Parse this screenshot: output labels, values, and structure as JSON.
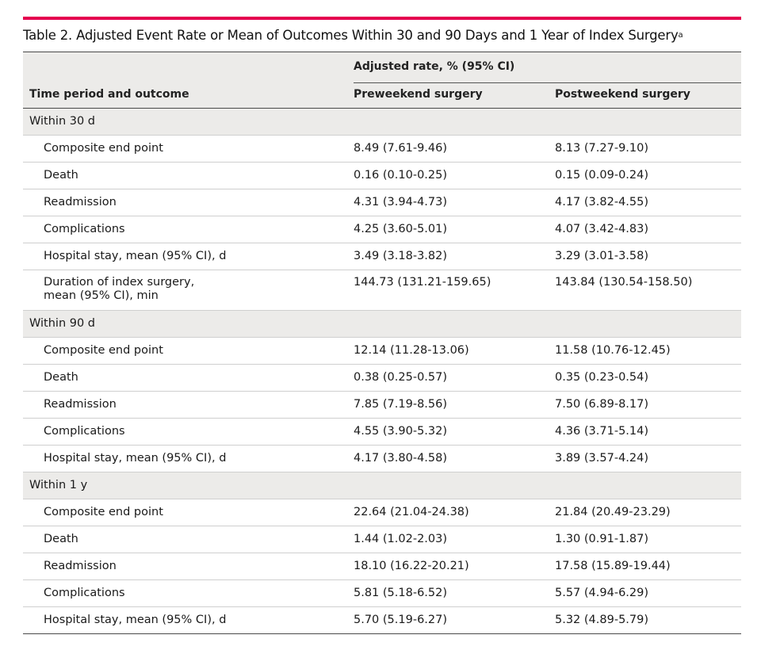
{
  "table": {
    "caption": "Table 2. Adjusted Event Rate or Mean of Outcomes Within 30 and 90 Days and 1 Year of Index Surgery",
    "caption_footnote_marker": "a",
    "accent_color": "#e5004f",
    "header_background": "#ecebe9",
    "group_header": "Adjusted rate, % (95% CI)",
    "columns": [
      "Time period and outcome",
      "Preweekend surgery",
      "Postweekend surgery"
    ],
    "sections": [
      {
        "label": "Within 30 d",
        "rows": [
          {
            "outcome": "Composite end point",
            "pre": "8.49 (7.61-9.46)",
            "post": "8.13 (7.27-9.10)"
          },
          {
            "outcome": "Death",
            "pre": "0.16 (0.10-0.25)",
            "post": "0.15 (0.09-0.24)"
          },
          {
            "outcome": "Readmission",
            "pre": "4.31 (3.94-4.73)",
            "post": "4.17 (3.82-4.55)"
          },
          {
            "outcome": "Complications",
            "pre": "4.25 (3.60-5.01)",
            "post": "4.07 (3.42-4.83)"
          },
          {
            "outcome": "Hospital stay, mean (95% CI), d",
            "pre": "3.49 (3.18-3.82)",
            "post": "3.29 (3.01-3.58)"
          },
          {
            "outcome_line1": "Duration of index surgery,",
            "outcome_line2": "mean (95% CI), min",
            "pre": "144.73 (131.21-159.65)",
            "post": "143.84 (130.54-158.50)"
          }
        ]
      },
      {
        "label": "Within 90 d",
        "rows": [
          {
            "outcome": "Composite end point",
            "pre": "12.14 (11.28-13.06)",
            "post": "11.58 (10.76-12.45)"
          },
          {
            "outcome": "Death",
            "pre": "0.38 (0.25-0.57)",
            "post": "0.35 (0.23-0.54)"
          },
          {
            "outcome": "Readmission",
            "pre": "7.85 (7.19-8.56)",
            "post": "7.50 (6.89-8.17)"
          },
          {
            "outcome": "Complications",
            "pre": "4.55 (3.90-5.32)",
            "post": "4.36 (3.71-5.14)"
          },
          {
            "outcome": "Hospital stay, mean (95% CI), d",
            "pre": "4.17 (3.80-4.58)",
            "post": "3.89 (3.57-4.24)"
          }
        ]
      },
      {
        "label": "Within 1 y",
        "rows": [
          {
            "outcome": "Composite end point",
            "pre": "22.64 (21.04-24.38)",
            "post": "21.84 (20.49-23.29)"
          },
          {
            "outcome": "Death",
            "pre": "1.44 (1.02-2.03)",
            "post": "1.30 (0.91-1.87)"
          },
          {
            "outcome": "Readmission",
            "pre": "18.10 (16.22-20.21)",
            "post": "17.58 (15.89-19.44)"
          },
          {
            "outcome": "Complications",
            "pre": "5.81 (5.18-6.52)",
            "post": "5.57 (4.94-6.29)"
          },
          {
            "outcome": "Hospital stay, mean (95% CI), d",
            "pre": "5.70 (5.19-6.27)",
            "post": "5.32 (4.89-5.79)"
          }
        ]
      }
    ]
  }
}
